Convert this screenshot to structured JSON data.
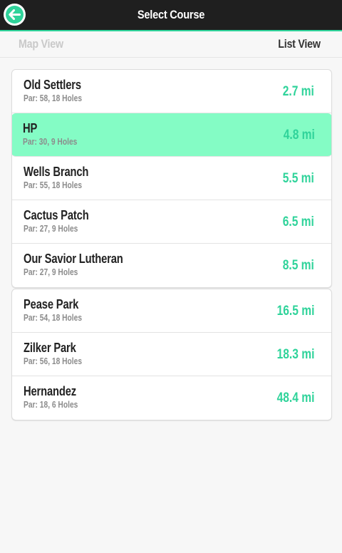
{
  "header": {
    "title": "Select Course",
    "back_icon": "arrow-left-icon"
  },
  "view_toggle": {
    "map_label": "Map View",
    "list_label": "List View",
    "selected": "List View"
  },
  "colors": {
    "accent": "#2fd39a",
    "highlight": "#84fcc5",
    "header_bg": "#1f1f1f"
  },
  "courses_group_1": [
    {
      "name": "Old Settlers",
      "meta": "Par: 58, 18 Holes",
      "distance": "2.7 mi"
    },
    {
      "name": "HP",
      "meta": "Par: 30, 9 Holes",
      "distance": "4.8 mi",
      "selected": true
    },
    {
      "name": "Wells Branch",
      "meta": "Par: 55, 18 Holes",
      "distance": "5.5 mi"
    },
    {
      "name": "Cactus Patch",
      "meta": "Par: 27, 9 Holes",
      "distance": "6.5 mi"
    },
    {
      "name": "Our Savior Lutheran",
      "meta": "Par: 27, 9 Holes",
      "distance": "8.5 mi"
    }
  ],
  "courses_group_2": [
    {
      "name": "Pease Park",
      "meta": "Par: 54, 18 Holes",
      "distance": "16.5 mi"
    },
    {
      "name": "Zilker Park",
      "meta": "Par: 56, 18 Holes",
      "distance": "18.3 mi"
    },
    {
      "name": "Hernandez",
      "meta": "Par: 18, 6 Holes",
      "distance": "48.4 mi"
    }
  ]
}
